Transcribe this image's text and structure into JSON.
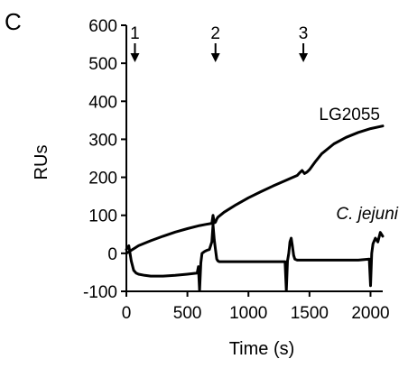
{
  "panel_label": "C",
  "chart_data": {
    "type": "line",
    "title": "",
    "xlabel": "Time (s)",
    "ylabel": "RUs",
    "xlim": [
      0,
      2100
    ],
    "ylim": [
      -100,
      600
    ],
    "x_ticks": [
      0,
      500,
      1000,
      1500,
      2000
    ],
    "y_ticks": [
      -100,
      0,
      100,
      200,
      300,
      400,
      500,
      600
    ],
    "grid": false,
    "events": [
      {
        "label": "1",
        "x": 70
      },
      {
        "label": "2",
        "x": 730
      },
      {
        "label": "3",
        "x": 1450
      }
    ],
    "series": [
      {
        "name": "LG2055",
        "label_style": "normal",
        "x": [
          0,
          50,
          100,
          200,
          300,
          400,
          500,
          600,
          650,
          700,
          710,
          720,
          730,
          740,
          750,
          800,
          900,
          1000,
          1100,
          1200,
          1300,
          1350,
          1400,
          1420,
          1440,
          1460,
          1480,
          1500,
          1550,
          1600,
          1700,
          1800,
          1900,
          2000,
          2100
        ],
        "y": [
          0,
          10,
          20,
          33,
          45,
          56,
          65,
          73,
          76,
          79,
          100,
          80,
          82,
          90,
          95,
          108,
          128,
          146,
          162,
          177,
          191,
          198,
          205,
          212,
          218,
          210,
          214,
          220,
          242,
          262,
          288,
          305,
          318,
          328,
          335
        ]
      },
      {
        "name": "C. jejuni",
        "label_style": "italic",
        "x": [
          0,
          20,
          40,
          60,
          80,
          100,
          150,
          200,
          300,
          400,
          500,
          580,
          590,
          600,
          610,
          620,
          640,
          660,
          680,
          700,
          710,
          720,
          730,
          740,
          750,
          760,
          800,
          900,
          1000,
          1100,
          1200,
          1300,
          1310,
          1320,
          1330,
          1340,
          1350,
          1360,
          1370,
          1380,
          1400,
          1500,
          1600,
          1700,
          1800,
          1900,
          1990,
          2000,
          2010,
          2020,
          2040,
          2060,
          2080,
          2100
        ],
        "y": [
          10,
          20,
          -20,
          -45,
          -52,
          -55,
          -58,
          -60,
          -60,
          -58,
          -55,
          -52,
          -35,
          -98,
          -25,
          0,
          5,
          8,
          10,
          30,
          75,
          35,
          10,
          -15,
          -20,
          -22,
          -22,
          -22,
          -22,
          -22,
          -22,
          -22,
          -98,
          -20,
          0,
          30,
          40,
          20,
          -5,
          -15,
          -18,
          -18,
          -18,
          -18,
          -18,
          -18,
          -15,
          -85,
          0,
          25,
          40,
          30,
          55,
          45
        ]
      }
    ]
  }
}
